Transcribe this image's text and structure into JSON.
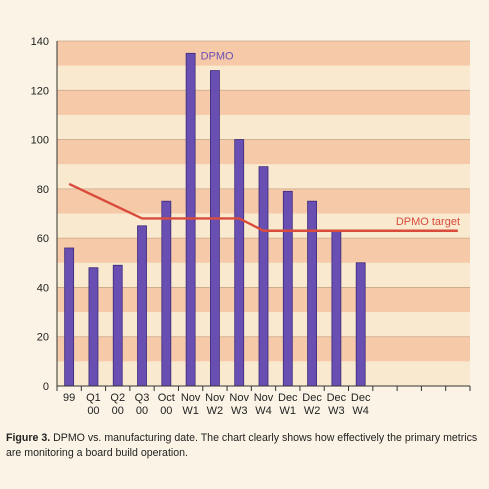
{
  "chart_data": {
    "type": "bar",
    "categories": [
      [
        "99",
        ""
      ],
      [
        "Q1",
        "00"
      ],
      [
        "Q2",
        "00"
      ],
      [
        "Q3",
        "00"
      ],
      [
        "Oct",
        "00"
      ],
      [
        "Nov",
        "W1"
      ],
      [
        "Nov",
        "W2"
      ],
      [
        "Nov",
        "W3"
      ],
      [
        "Nov",
        "W4"
      ],
      [
        "Dec",
        "W1"
      ],
      [
        "Dec",
        "W2"
      ],
      [
        "Dec",
        "W3"
      ],
      [
        "Dec",
        "W4"
      ]
    ],
    "series": [
      {
        "name": "DPMO",
        "type": "bar",
        "color": "#6a4fb3",
        "values": [
          56,
          48,
          49,
          65,
          75,
          135,
          128,
          100,
          89,
          79,
          75,
          63,
          50
        ]
      },
      {
        "name": "DPMO target",
        "type": "line",
        "color": "#d94c3c",
        "points": [
          [
            0,
            82
          ],
          [
            3,
            68
          ],
          [
            7,
            68
          ],
          [
            8,
            63
          ],
          [
            16,
            63
          ]
        ]
      }
    ],
    "ylim": [
      0,
      140
    ],
    "ytick_step": 20,
    "xlim": [
      -0.5,
      16.5
    ],
    "grid": "horizontal",
    "band_colors": [
      "#f9e9cf",
      "#f6c9a8"
    ]
  },
  "caption": {
    "label": "Figure 3.",
    "text": "DPMO vs. manufacturing date. The chart clearly shows how effectively the primary metrics are monitoring a board build operation."
  }
}
